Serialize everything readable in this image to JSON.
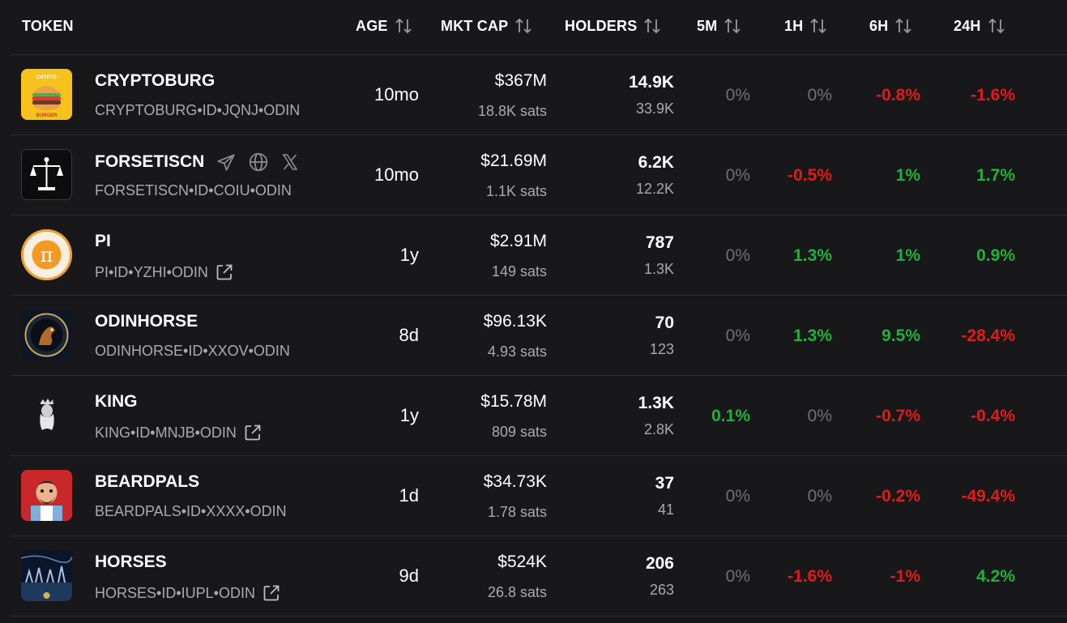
{
  "header": {
    "token": "TOKEN",
    "age": "AGE",
    "mkt_cap": "MKT CAP",
    "holders": "HOLDERS",
    "m5": "5M",
    "h1": "1H",
    "h6": "6H",
    "h24": "24H"
  },
  "colors": {
    "positive": "#1fb13c",
    "negative": "#e01b1b",
    "neutral": "#6f6f78",
    "background": "#18181b"
  },
  "rows": [
    {
      "name": "CRYPTOBURG",
      "ticker": "CRYPTOBURG•ID•JQNJ•ODIN",
      "age": "10mo",
      "mkt_cap": "$367M",
      "sats": "18.8K sats",
      "holders": "14.9K",
      "holders_sub": "33.9K",
      "m5": "0%",
      "h1": "0%",
      "h6": "-0.8%",
      "h24": "-1.6%",
      "logo_text_top": "CRYPTO",
      "logo_text_bottom": "BURGER"
    },
    {
      "name": "FORSETISCN",
      "ticker": "FORSETISCN•ID•COIU•ODIN",
      "age": "10mo",
      "mkt_cap": "$21.69M",
      "sats": "1.1K sats",
      "holders": "6.2K",
      "holders_sub": "12.2K",
      "m5": "0%",
      "h1": "-0.5%",
      "h6": "1%",
      "h24": "1.7%",
      "social": [
        "telegram-icon",
        "globe-icon",
        "x-icon"
      ]
    },
    {
      "name": "PI",
      "ticker": "PI•ID•YZHI•ODIN",
      "age": "1y",
      "mkt_cap": "$2.91M",
      "sats": "149 sats",
      "holders": "787",
      "holders_sub": "1.3K",
      "m5": "0%",
      "h1": "1.3%",
      "h6": "1%",
      "h24": "0.9%",
      "logo_text": "π"
    },
    {
      "name": "ODINHORSE",
      "ticker": "ODINHORSE•ID•XXOV•ODIN",
      "age": "8d",
      "mkt_cap": "$96.13K",
      "sats": "4.93 sats",
      "holders": "70",
      "holders_sub": "123",
      "m5": "0%",
      "h1": "1.3%",
      "h6": "9.5%",
      "h24": "-28.4%"
    },
    {
      "name": "KING",
      "ticker": "KING•ID•MNJB•ODIN",
      "age": "1y",
      "mkt_cap": "$15.78M",
      "sats": "809 sats",
      "holders": "1.3K",
      "holders_sub": "2.8K",
      "m5": "0.1%",
      "h1": "0%",
      "h6": "-0.7%",
      "h24": "-0.4%"
    },
    {
      "name": "BEARDPALS",
      "ticker": "BEARDPALS•ID•XXXX•ODIN",
      "age": "1d",
      "mkt_cap": "$34.73K",
      "sats": "1.78 sats",
      "holders": "37",
      "holders_sub": "41",
      "m5": "0%",
      "h1": "0%",
      "h6": "-0.2%",
      "h24": "-49.4%"
    },
    {
      "name": "HORSES",
      "ticker": "HORSES•ID•IUPL•ODIN",
      "age": "9d",
      "mkt_cap": "$524K",
      "sats": "26.8 sats",
      "holders": "206",
      "holders_sub": "263",
      "m5": "0%",
      "h1": "-1.6%",
      "h6": "-1%",
      "h24": "4.2%"
    }
  ]
}
